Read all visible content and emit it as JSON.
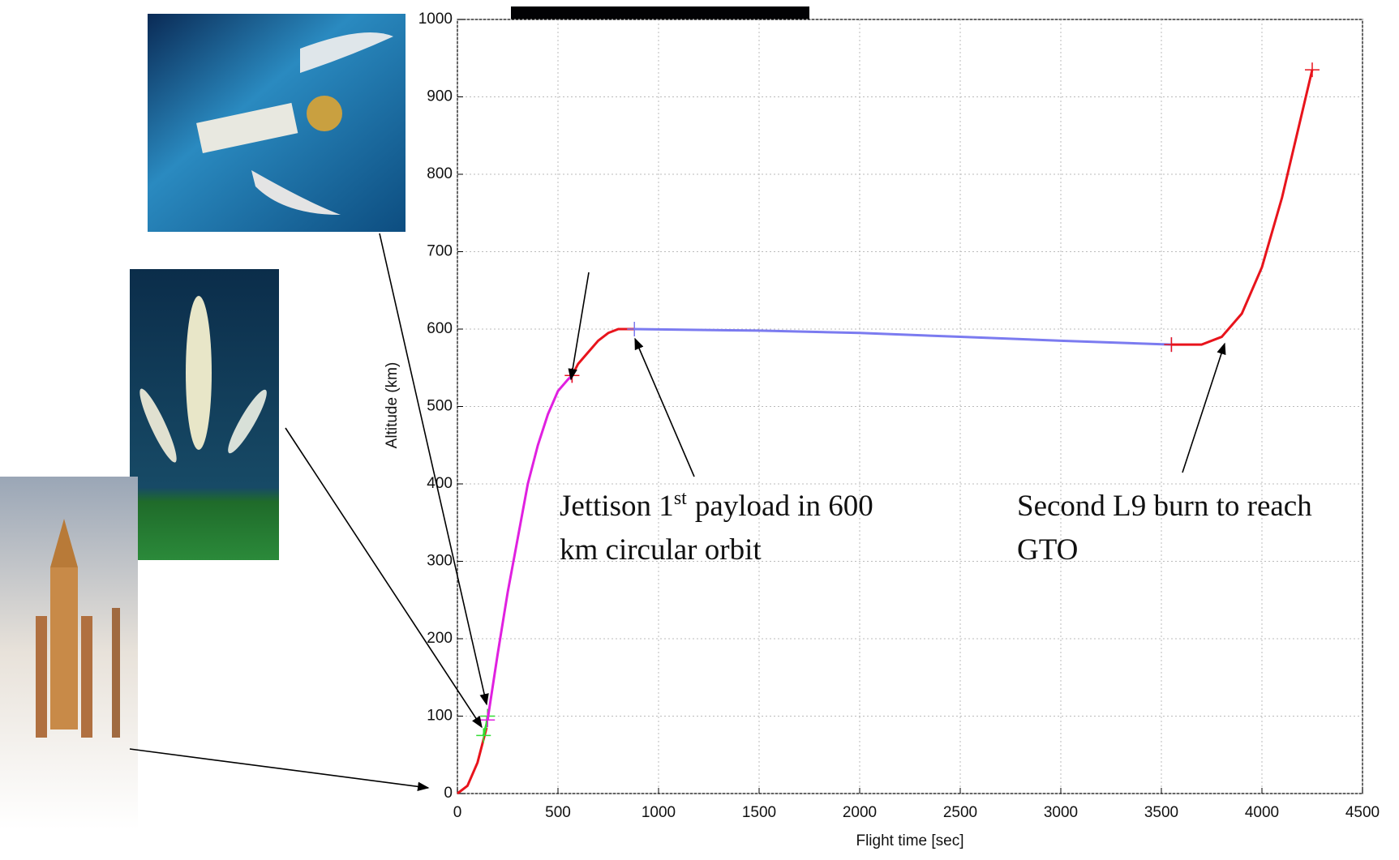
{
  "chart_data": {
    "type": "line",
    "xlabel": "Flight time [sec]",
    "ylabel": "Altitude (km)",
    "xlim": [
      0,
      4500
    ],
    "xticks": [
      0,
      500,
      1000,
      1500,
      2000,
      2500,
      3000,
      3500,
      4000,
      4500
    ],
    "ylim": [
      0,
      1000
    ],
    "yticks": [
      0,
      100,
      200,
      300,
      400,
      500,
      600,
      700,
      800,
      900,
      1000
    ],
    "grid": true,
    "series": [
      {
        "color": "#e8141c",
        "x": [
          0,
          50,
          100,
          130,
          145
        ],
        "values": [
          0,
          10,
          40,
          70,
          85
        ]
      },
      {
        "color": "#33dd33",
        "x": [
          130,
          145,
          150
        ],
        "values": [
          75,
          90,
          100
        ]
      },
      {
        "color": "#e020e0",
        "x": [
          150,
          200,
          250,
          300,
          350,
          400,
          450,
          500,
          550,
          570
        ],
        "values": [
          95,
          180,
          260,
          330,
          400,
          450,
          490,
          520,
          535,
          540
        ]
      },
      {
        "color": "#e8141c",
        "x": [
          570,
          600,
          650,
          700,
          750,
          800,
          880
        ],
        "values": [
          540,
          555,
          570,
          585,
          595,
          600,
          600
        ]
      },
      {
        "color": "#7b7bf0",
        "x": [
          880,
          1500,
          2000,
          2500,
          3000,
          3550
        ],
        "values": [
          600,
          598,
          595,
          590,
          585,
          580
        ]
      },
      {
        "color": "#e8141c",
        "x": [
          3550,
          3700,
          3800,
          3900,
          4000,
          4100,
          4200,
          4250
        ],
        "values": [
          580,
          580,
          590,
          620,
          680,
          770,
          880,
          935
        ]
      }
    ],
    "annotations": [
      {
        "line1": {
          "text": "Jettison 1",
          "sup": "st",
          "rest": "payload in 600"
        },
        "line2": "km circular orbit"
      },
      {
        "line1": "Second L9 burn to reach",
        "line2": "GTO"
      }
    ]
  }
}
